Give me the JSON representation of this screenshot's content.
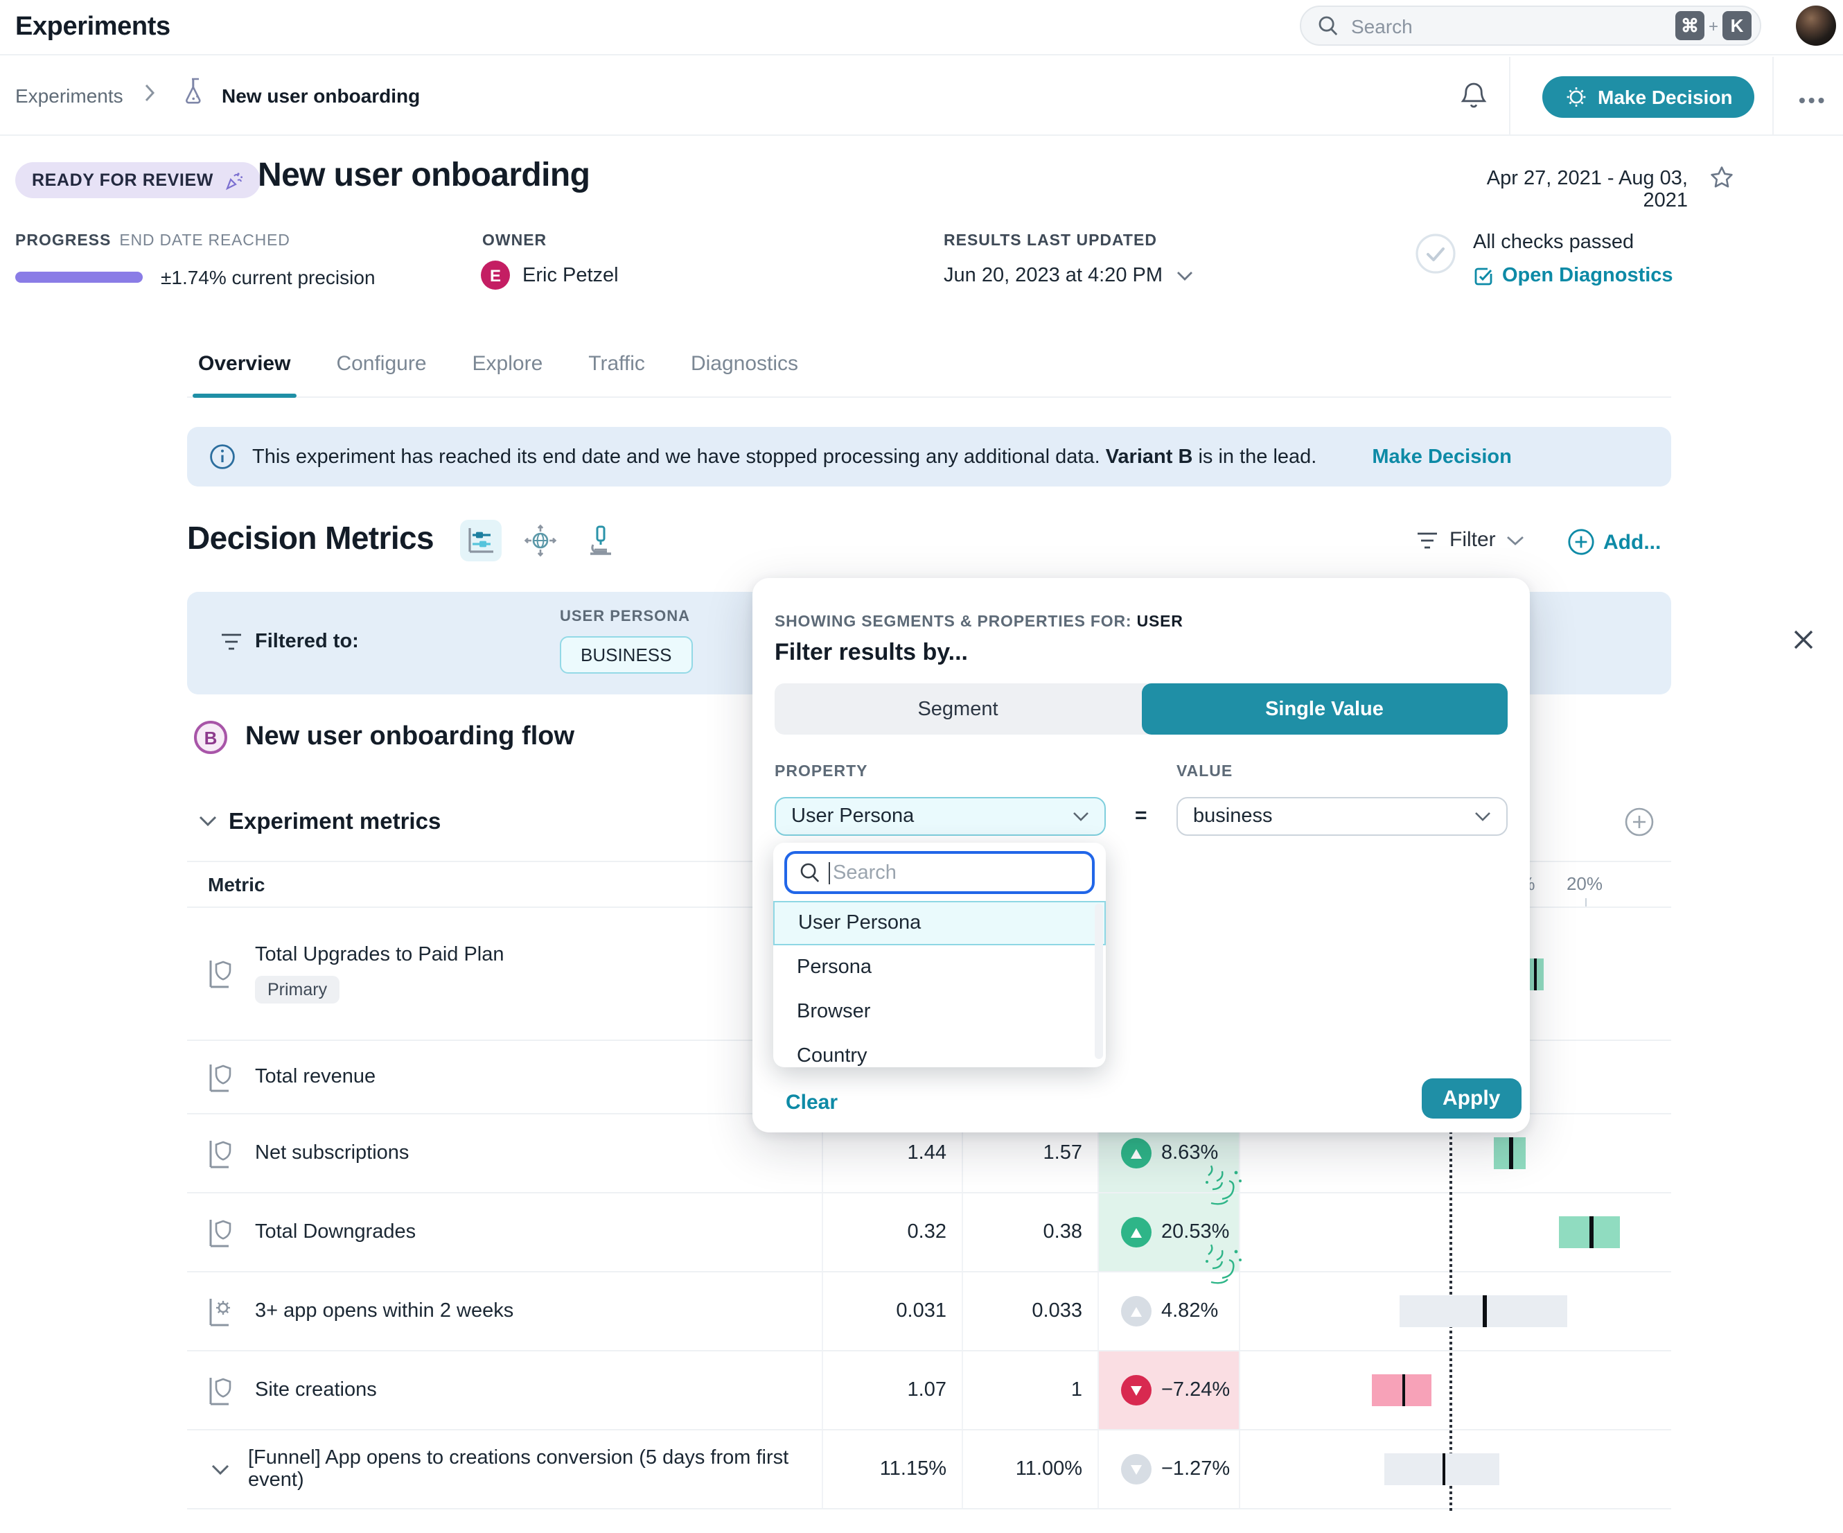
{
  "app": {
    "title": "Experiments"
  },
  "topbar": {
    "search_placeholder": "Search",
    "shortcut_keys": [
      "⌘",
      "K"
    ],
    "shortcut_joiner": "+"
  },
  "breadcrumb": {
    "root": "Experiments",
    "current": "New user onboarding"
  },
  "toolbar": {
    "make_decision_label": "Make Decision",
    "more_label": "•••"
  },
  "header": {
    "status_badge": "READY FOR REVIEW",
    "title": "New user onboarding",
    "date_range": "Apr 27, 2021 - Aug 03, 2021"
  },
  "meta": {
    "progress_label": "PROGRESS",
    "progress_status": "END DATE REACHED",
    "precision": "±1.74% current precision",
    "owner_label": "OWNER",
    "owner_initial": "E",
    "owner_name": "Eric Petzel",
    "updated_label": "RESULTS LAST UPDATED",
    "updated_value": "Jun 20, 2023 at 4:20 PM",
    "checks_text": "All checks passed",
    "diagnostics_link": "Open Diagnostics"
  },
  "tabs": [
    {
      "label": "Overview",
      "active": true
    },
    {
      "label": "Configure",
      "active": false
    },
    {
      "label": "Explore",
      "active": false
    },
    {
      "label": "Traffic",
      "active": false
    },
    {
      "label": "Diagnostics",
      "active": false
    }
  ],
  "banner": {
    "text_before": "This experiment has reached its end date and we have stopped processing any additional data.",
    "bold": "Variant B",
    "text_after": "is in the lead.",
    "link": "Make Decision"
  },
  "decision_metrics": {
    "title": "Decision Metrics",
    "filter_label": "Filter",
    "add_label": "Add..."
  },
  "filter_bar": {
    "label": "Filtered to:",
    "property": "USER PERSONA",
    "value": "BUSINESS"
  },
  "modal": {
    "context_label": "SHOWING SEGMENTS & PROPERTIES FOR:",
    "context_value": "USER",
    "heading": "Filter results by...",
    "toggle_options": [
      "Segment",
      "Single Value"
    ],
    "toggle_selected": "Single Value",
    "property_label": "PROPERTY",
    "property_value": "User Persona",
    "operator": "=",
    "value_label": "VALUE",
    "value_value": "business",
    "search_placeholder": "Search",
    "options": [
      "User Persona",
      "Persona",
      "Browser",
      "Country"
    ],
    "selected_option": "User Persona",
    "clear_label": "Clear",
    "apply_label": "Apply"
  },
  "variant": {
    "letter": "B",
    "name": "New user onboarding flow"
  },
  "metrics_section": {
    "title": "Experiment metrics",
    "column_header": "Metric"
  },
  "chart_data": {
    "type": "table",
    "axis": [
      {
        "text": "10%",
        "value": 10
      },
      {
        "text": "20%",
        "value": 20
      }
    ],
    "rows": [
      {
        "icon": "shield",
        "name": "Total Upgrades to Paid Plan",
        "badge": "Primary",
        "control": "",
        "treatment": "",
        "lift": "",
        "dir": null,
        "tone": "pos",
        "ci": [
          10.9,
          13.7
        ],
        "center": 12.3,
        "celebrate": false
      },
      {
        "icon": "shield",
        "name": "Total revenue",
        "badge": null,
        "control": "",
        "treatment": "",
        "lift": "",
        "dir": null,
        "tone": null,
        "ci": null,
        "center": null,
        "celebrate": false
      },
      {
        "icon": "shield",
        "name": "Net subscriptions",
        "badge": null,
        "control": "1.44",
        "treatment": "1.57",
        "lift": "8.63%",
        "dir": "up",
        "tone": "pos",
        "ci": [
          6.3,
          11.0
        ],
        "center": 8.63,
        "celebrate": true
      },
      {
        "icon": "shield",
        "name": "Total Downgrades",
        "badge": null,
        "control": "0.32",
        "treatment": "0.38",
        "lift": "20.53%",
        "dir": "up",
        "tone": "pos",
        "ci": [
          15.9,
          25.1
        ],
        "center": 20.53,
        "celebrate": true
      },
      {
        "icon": "gear",
        "name": "3+ app opens within 2 weeks",
        "badge": null,
        "control": "0.031",
        "treatment": "0.033",
        "lift": "4.82%",
        "dir": "up",
        "tone": "neutral",
        "ci": [
          -7.6,
          17.2
        ],
        "center": 4.82,
        "celebrate": false
      },
      {
        "icon": "shield",
        "name": "Site creations",
        "badge": null,
        "control": "1.07",
        "treatment": "1",
        "lift": "−7.24%",
        "dir": "down",
        "tone": "neg",
        "ci": [
          -11.6,
          -2.9
        ],
        "center": -7.24,
        "celebrate": false
      },
      {
        "icon": "chevron",
        "name": "[Funnel] App opens to creations conversion (5 days from first event)",
        "badge": null,
        "control": "11.15%",
        "treatment": "11.00%",
        "lift": "−1.27%",
        "dir": "down",
        "tone": "neutral",
        "ci": [
          -9.8,
          7.2
        ],
        "center": -1.27,
        "celebrate": false
      }
    ]
  },
  "colors": {
    "accent_teal": "#1f8fa6",
    "link_teal": "#0d8aa6",
    "positive_green": "#2eb588",
    "negative_red": "#d82950",
    "progress_purple": "#8a7ce6",
    "banner_blue": "#e3edf8",
    "filter_bar_blue": "#e4eef8",
    "badge_lavender": "#e7e2f6"
  }
}
